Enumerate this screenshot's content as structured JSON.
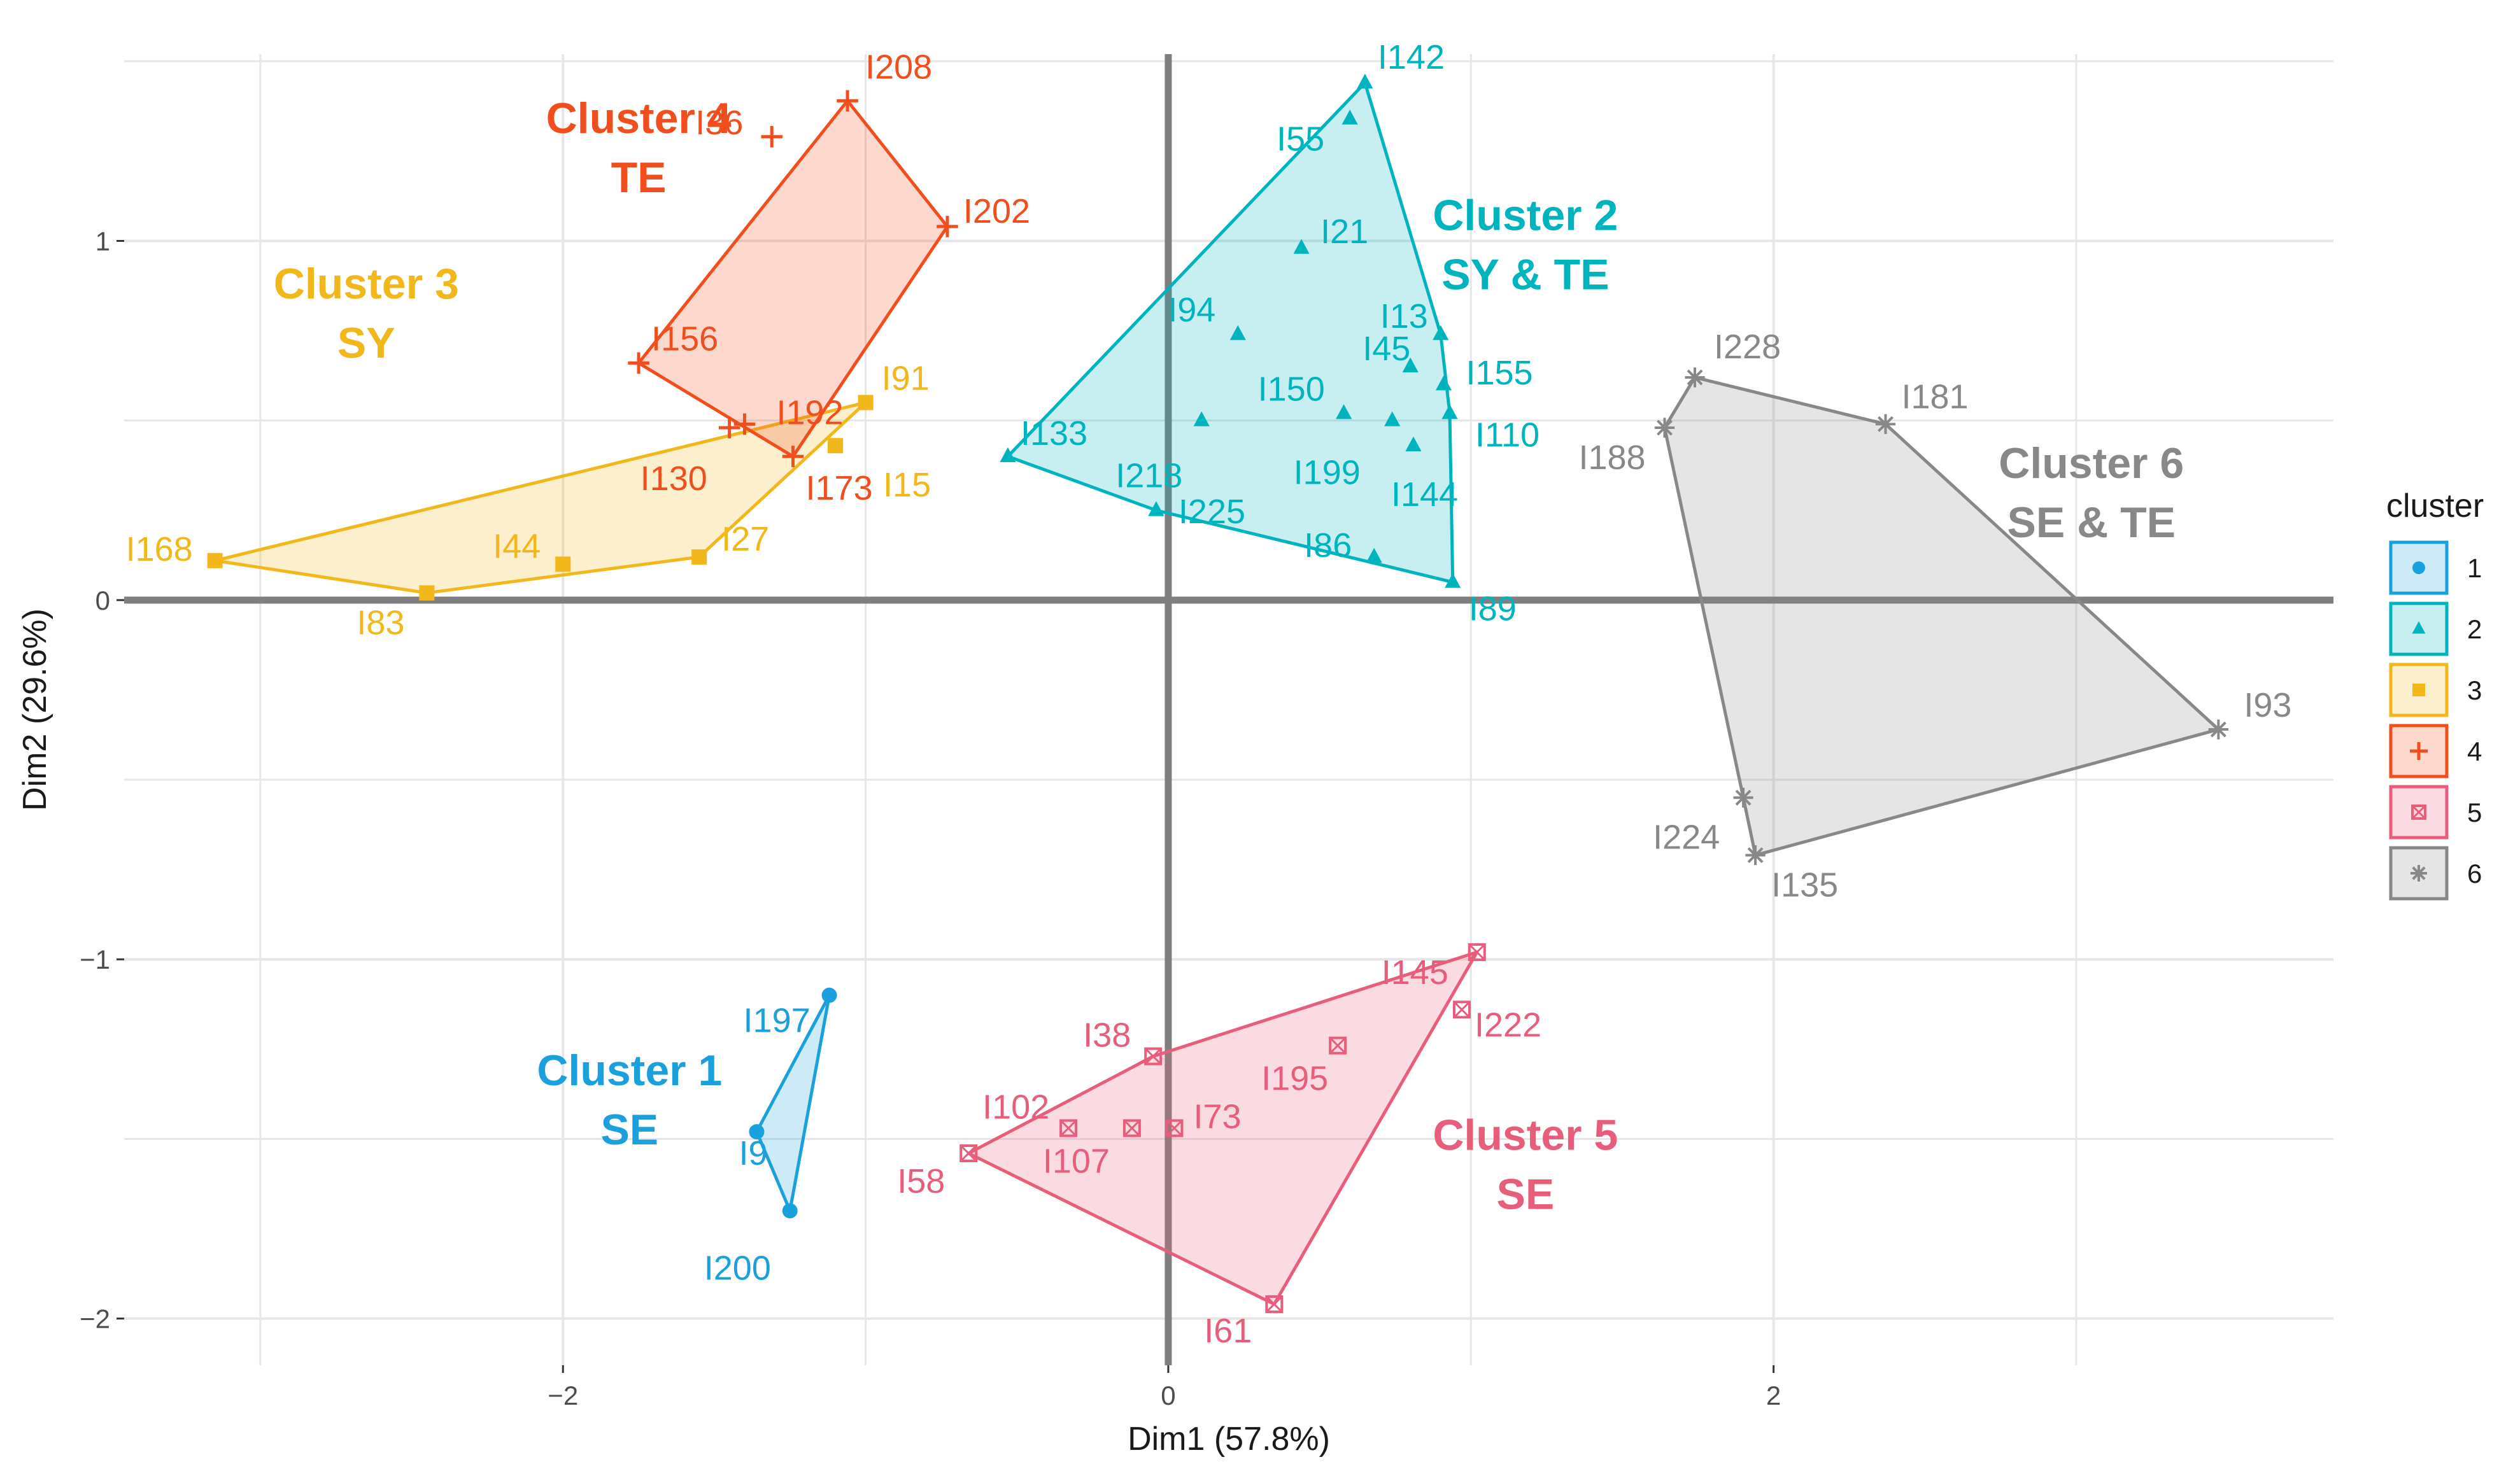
{
  "chart_data": {
    "type": "scatter",
    "xlabel": "Dim1 (57.8%)",
    "ylabel": "Dim2 (29.6%)",
    "xlim": [
      -3.45,
      3.85
    ],
    "ylim": [
      -2.13,
      1.52
    ],
    "x_ticks": [
      -2,
      0,
      2
    ],
    "y_ticks": [
      -2,
      -1,
      0,
      1
    ],
    "x_tick_labels": [
      "−2",
      "0",
      "2"
    ],
    "y_tick_labels": [
      "−2",
      "−1",
      "0",
      "1"
    ],
    "grid": true,
    "legend_title": "cluster",
    "legend_position": "right",
    "clusters": [
      {
        "id": "1",
        "color": "#1aa0dc",
        "shape": "circle",
        "label_lines": [
          "Cluster 1",
          "SE"
        ],
        "label_pos": [
          -1.78,
          -1.35
        ],
        "points": [
          {
            "name": "I197",
            "x": -1.12,
            "y": -1.1
          },
          {
            "name": "I9",
            "x": -1.36,
            "y": -1.48
          },
          {
            "name": "I200",
            "x": -1.25,
            "y": -1.7
          }
        ],
        "hull": [
          "I197",
          "I200",
          "I9"
        ]
      },
      {
        "id": "2",
        "color": "#00b4be",
        "shape": "triangle",
        "label_lines": [
          "Cluster 2",
          "SY & TE"
        ],
        "label_pos": [
          1.18,
          1.03
        ],
        "points": [
          {
            "name": "I142",
            "x": 0.65,
            "y": 1.44
          },
          {
            "name": "I55",
            "x": 0.6,
            "y": 1.34
          },
          {
            "name": "I21",
            "x": 0.44,
            "y": 0.98
          },
          {
            "name": "I13",
            "x": 0.9,
            "y": 0.74
          },
          {
            "name": "I94",
            "x": 0.23,
            "y": 0.74
          },
          {
            "name": "I45",
            "x": 0.8,
            "y": 0.65
          },
          {
            "name": "I155",
            "x": 0.91,
            "y": 0.6
          },
          {
            "name": "I150",
            "x": 0.58,
            "y": 0.52
          },
          {
            "name": "I110",
            "x": 0.93,
            "y": 0.52
          },
          {
            "name": "I218",
            "x": 0.11,
            "y": 0.5
          },
          {
            "name": "I199",
            "x": 0.74,
            "y": 0.5
          },
          {
            "name": "I144",
            "x": 0.81,
            "y": 0.43
          },
          {
            "name": "I133",
            "x": -0.53,
            "y": 0.4
          },
          {
            "name": "I225",
            "x": -0.04,
            "y": 0.25
          },
          {
            "name": "I86",
            "x": 0.68,
            "y": 0.12
          },
          {
            "name": "I89",
            "x": 0.94,
            "y": 0.05
          }
        ],
        "hull": [
          "I142",
          "I13",
          "I110",
          "I89",
          "I225",
          "I133"
        ]
      },
      {
        "id": "3",
        "color": "#f2b71a",
        "shape": "square",
        "label_lines": [
          "Cluster 3",
          "SY"
        ],
        "label_pos": [
          -2.65,
          0.84
        ],
        "points": [
          {
            "name": "I91",
            "x": -1.0,
            "y": 0.55
          },
          {
            "name": "I15",
            "x": -1.1,
            "y": 0.43
          },
          {
            "name": "I27",
            "x": -1.55,
            "y": 0.12
          },
          {
            "name": "I44",
            "x": -2.0,
            "y": 0.1
          },
          {
            "name": "I83",
            "x": -2.45,
            "y": 0.02
          },
          {
            "name": "I168",
            "x": -3.15,
            "y": 0.11
          }
        ],
        "hull": [
          "I91",
          "I27",
          "I83",
          "I168"
        ]
      },
      {
        "id": "4",
        "color": "#f04e1c",
        "shape": "plus",
        "label_lines": [
          "Cluster 4",
          "TE"
        ],
        "label_pos": [
          -1.75,
          1.3
        ],
        "points": [
          {
            "name": "I208",
            "x": -1.06,
            "y": 1.39
          },
          {
            "name": "I36",
            "x": -1.31,
            "y": 1.29
          },
          {
            "name": "I202",
            "x": -0.73,
            "y": 1.04
          },
          {
            "name": "I156",
            "x": -1.75,
            "y": 0.66
          },
          {
            "name": "I192",
            "x": -1.4,
            "y": 0.49
          },
          {
            "name": "I130",
            "x": -1.45,
            "y": 0.48
          },
          {
            "name": "I173",
            "x": -1.24,
            "y": 0.4
          }
        ],
        "hull": [
          "I208",
          "I202",
          "I173",
          "I156"
        ]
      },
      {
        "id": "5",
        "color": "#e85d7a",
        "shape": "square-x",
        "label_lines": [
          "Cluster 5",
          "SE"
        ],
        "label_pos": [
          1.18,
          -1.53
        ],
        "points": [
          {
            "name": "I145",
            "x": 1.02,
            "y": -0.98
          },
          {
            "name": "I222",
            "x": 0.97,
            "y": -1.14
          },
          {
            "name": "I195",
            "x": 0.56,
            "y": -1.24
          },
          {
            "name": "I38",
            "x": -0.05,
            "y": -1.27
          },
          {
            "name": "I102",
            "x": -0.33,
            "y": -1.47
          },
          {
            "name": "I107",
            "x": -0.12,
            "y": -1.47
          },
          {
            "name": "I73",
            "x": 0.02,
            "y": -1.47
          },
          {
            "name": "I58",
            "x": -0.66,
            "y": -1.54
          },
          {
            "name": "I61",
            "x": 0.35,
            "y": -1.96
          }
        ],
        "hull": [
          "I145",
          "I61",
          "I58",
          "I38"
        ]
      },
      {
        "id": "6",
        "color": "#888888",
        "shape": "asterisk",
        "label_lines": [
          "Cluster 6",
          "SE & TE"
        ],
        "label_pos": [
          3.05,
          0.34
        ],
        "points": [
          {
            "name": "I228",
            "x": 1.74,
            "y": 0.62
          },
          {
            "name": "I181",
            "x": 2.37,
            "y": 0.49
          },
          {
            "name": "I188",
            "x": 1.64,
            "y": 0.48
          },
          {
            "name": "I93",
            "x": 3.47,
            "y": -0.36
          },
          {
            "name": "I224",
            "x": 1.9,
            "y": -0.55
          },
          {
            "name": "I135",
            "x": 1.94,
            "y": -0.71
          }
        ],
        "hull": [
          "I228",
          "I181",
          "I93",
          "I135",
          "I224",
          "I188"
        ]
      }
    ]
  }
}
